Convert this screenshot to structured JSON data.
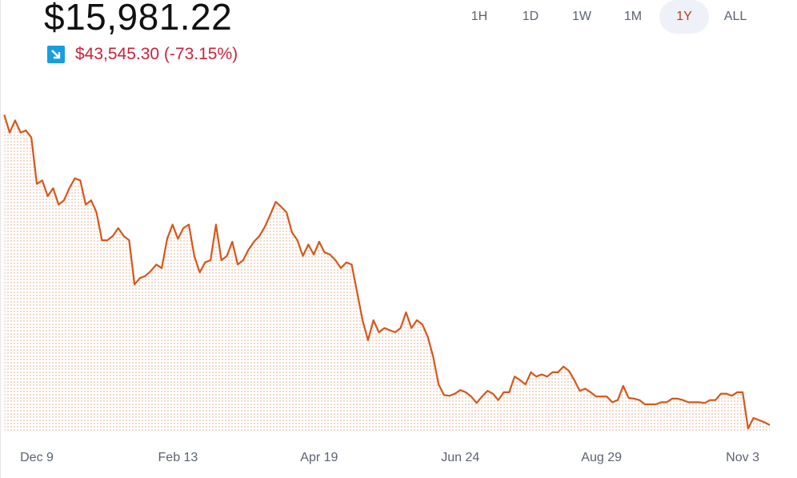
{
  "header": {
    "price": "$15,981.22",
    "change": "$43,545.30 (-73.15%)",
    "ranges": [
      "1H",
      "1D",
      "1W",
      "1M",
      "1Y",
      "ALL"
    ],
    "selected_range": "1Y"
  },
  "chart_data": {
    "type": "area",
    "color": "#d4571c",
    "ylim": [
      15200,
      62000
    ],
    "categories": [
      null,
      null,
      null,
      null,
      null,
      null,
      "Dec 9",
      null,
      null,
      null,
      null,
      null,
      null,
      null,
      null,
      null,
      null,
      null,
      null,
      null,
      null,
      null,
      null,
      null,
      null,
      null,
      null,
      null,
      null,
      null,
      null,
      null,
      "Feb 13",
      null,
      null,
      null,
      null,
      null,
      null,
      null,
      null,
      null,
      null,
      null,
      null,
      null,
      null,
      null,
      null,
      null,
      null,
      null,
      null,
      null,
      null,
      null,
      null,
      null,
      "Apr 19",
      null,
      null,
      null,
      null,
      null,
      null,
      null,
      null,
      null,
      null,
      null,
      null,
      null,
      null,
      null,
      null,
      null,
      null,
      null,
      null,
      null,
      null,
      null,
      null,
      null,
      "Jun 24",
      null,
      null,
      null,
      null,
      null,
      null,
      null,
      null,
      null,
      null,
      null,
      null,
      null,
      null,
      null,
      null,
      null,
      null,
      null,
      null,
      null,
      null,
      null,
      null,
      null,
      "Aug 29",
      null,
      null,
      null,
      null,
      null,
      null,
      null,
      null,
      null,
      null,
      null,
      null,
      null,
      null,
      null,
      null,
      null,
      null,
      null,
      null,
      null,
      null,
      null,
      null,
      null,
      "Nov 3",
      null,
      null,
      null,
      null,
      null
    ],
    "values": [
      59500,
      57000,
      58700,
      57000,
      57300,
      56300,
      49800,
      50300,
      48100,
      49200,
      46900,
      47500,
      49200,
      50600,
      50300,
      46900,
      47500,
      45800,
      41900,
      41900,
      42500,
      43600,
      42500,
      41900,
      35700,
      36600,
      36900,
      37600,
      38500,
      38000,
      42100,
      44100,
      42100,
      43600,
      44100,
      39700,
      37400,
      38800,
      39100,
      44100,
      39100,
      39700,
      41700,
      38500,
      39100,
      40600,
      41700,
      42500,
      43800,
      45500,
      47300,
      46600,
      45800,
      43000,
      41900,
      39700,
      41300,
      39900,
      41700,
      40200,
      39900,
      39100,
      38000,
      38800,
      38500,
      34600,
      30700,
      27900,
      30700,
      29000,
      29600,
      29300,
      29000,
      29600,
      31800,
      29600,
      30700,
      30100,
      28400,
      25600,
      21700,
      20200,
      20100,
      20400,
      20900,
      20600,
      20000,
      19100,
      20000,
      20800,
      20400,
      19500,
      20600,
      20600,
      22800,
      22300,
      21700,
      23400,
      22800,
      23100,
      22800,
      23400,
      23400,
      24200,
      23600,
      22300,
      20800,
      21100,
      20600,
      20000,
      20000,
      20000,
      19200,
      19500,
      21500,
      19800,
      19700,
      19500,
      18900,
      18900,
      18900,
      19200,
      19200,
      19700,
      19700,
      19500,
      19200,
      19200,
      19200,
      19100,
      19500,
      19500,
      20400,
      20400,
      20100,
      20600,
      20600,
      15500,
      17000,
      16700,
      16400,
      16000
    ]
  }
}
